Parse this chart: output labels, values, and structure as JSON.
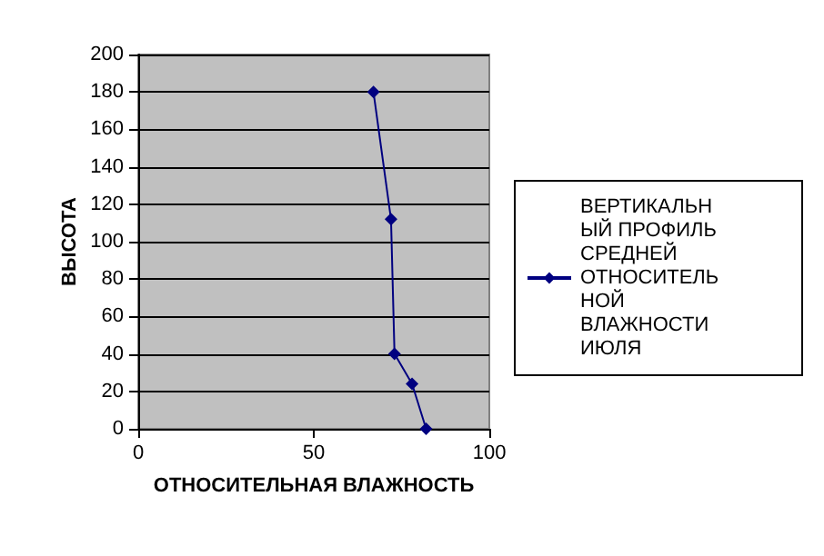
{
  "chart_data": {
    "type": "line",
    "xlabel": "ОТНОСИТЕЛЬНАЯ ВЛАЖНОСТЬ",
    "ylabel": "ВЫСОТА",
    "series": [
      {
        "name": "ВЕРТИКАЛЬНЫЙ ПРОФИЛЬ СРЕДНЕЙ ОТНОСИТЕЛЬНОЙ ВЛАЖНОСТИ ИЮЛЯ",
        "color": "#000080",
        "x": [
          82,
          78,
          73,
          72,
          67
        ],
        "values": [
          0,
          24,
          40,
          112,
          180
        ]
      }
    ],
    "xlim": [
      0,
      100
    ],
    "xticks": [
      0,
      50,
      100
    ],
    "ylim": [
      0,
      200
    ],
    "yticks": [
      0,
      20,
      40,
      60,
      80,
      100,
      120,
      140,
      160,
      180,
      200
    ],
    "grid": "y",
    "legend": "right",
    "marker": "diamond",
    "line_style": "solid"
  }
}
